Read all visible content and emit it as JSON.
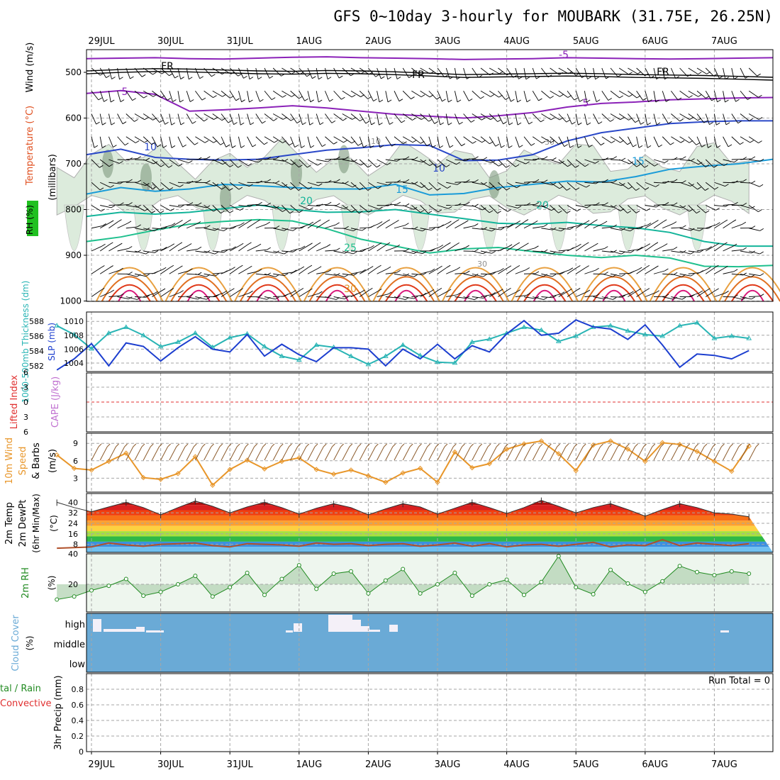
{
  "title": "GFS 0~10day 3-hourly for MOUBARK (31.75E, 26.25N)",
  "chart_data": {
    "type": "line",
    "title": "GFS 0~10day 3-hourly for MOUBARK (31.75E, 26.25N)",
    "date_labels": [
      "29JUL",
      "30JUL",
      "31JUL",
      "1AUG",
      "2AUG",
      "3AUG",
      "4AUG",
      "5AUG",
      "6AUG",
      "7AUG"
    ],
    "time_steps": 81,
    "colors": {
      "rh_fill": "#dcebdc",
      "rh_dark": "#7f9a7f",
      "cloud": "#6aaad6",
      "grid": "#a6a6a6",
      "freezing": "#000000"
    },
    "panels": {
      "upper_air": {
        "ylabel": "(millibars)",
        "legend": [
          "Wind (m/s)",
          "Temperature (°C)",
          "RH (%)"
        ],
        "y_ticks": [
          500,
          600,
          700,
          800,
          900,
          1000
        ],
        "temperature_labels": [
          "-5",
          "5",
          "10",
          "15",
          "20",
          "25",
          "30",
          "FR"
        ],
        "rh_labels": [
          "10",
          "30"
        ],
        "isotherms": [
          {
            "label": "-5",
            "color": "#8b22b8",
            "y": [
              470,
              469,
              468,
              470,
              471,
              469,
              467,
              466,
              468,
              469,
              470,
              472,
              471,
              470,
              468,
              469,
              470,
              471,
              470,
              469,
              468
            ]
          },
          {
            "label": "FR",
            "color": "#000000",
            "y": [
              500,
              497,
              495,
              496,
              498,
              500,
              501,
              499,
              500,
              502,
              505,
              508,
              507,
              506,
              505,
              506,
              508,
              509,
              510,
              512,
              514
            ]
          },
          {
            "label": "5",
            "color": "#8b22b8",
            "y": [
              546,
              540,
              548,
              585,
              582,
              578,
              573,
              578,
              585,
              592,
              596,
              600,
              595,
              588,
              576,
              568,
              565,
              560,
              558,
              556,
              555
            ]
          },
          {
            "label": "10",
            "color": "#2a48c8",
            "y": [
              680,
              668,
              686,
              690,
              692,
              690,
              680,
              670,
              665,
              658,
              660,
              693,
              692,
              680,
              650,
              632,
              622,
              612,
              608,
              606,
              606
            ]
          },
          {
            "label": "15",
            "color": "#199bd8",
            "y": [
              766,
              752,
              760,
              755,
              745,
              748,
              752,
              755,
              755,
              745,
              768,
              765,
              752,
              745,
              738,
              740,
              728,
              712,
              705,
              700,
              690
            ]
          },
          {
            "label": "20",
            "color": "#13b49a",
            "y": [
              815,
              806,
              810,
              806,
              798,
              790,
              800,
              806,
              805,
              800,
              810,
              820,
              830,
              832,
              828,
              835,
              840,
              850,
              870,
              880,
              880
            ]
          },
          {
            "label": "25",
            "color": "#1fc08e",
            "y": [
              870,
              860,
              845,
              832,
              826,
              822,
              825,
              842,
              865,
              880,
              895,
              886,
              883,
              892,
              900,
              905,
              900,
              906,
              924,
              925,
              922
            ]
          }
        ]
      },
      "thickness_slp": {
        "ylabel_left": "1000-500mb Thickness (dm)",
        "ylabel_right": "SLP (mb)",
        "thickness_ticks": [
          582,
          584,
          586,
          588
        ],
        "slp_ticks": [
          1004,
          1006,
          1008,
          1010
        ],
        "thickness": {
          "name": "1000-500mb Thickness",
          "color": "#28b4b4",
          "x": [
            0,
            2,
            4,
            6,
            8,
            10,
            12,
            14,
            16,
            18,
            20,
            22,
            24,
            26,
            28,
            30,
            32,
            34,
            36,
            38,
            40,
            42,
            44,
            46,
            48,
            50,
            52,
            54,
            56,
            58,
            60,
            62,
            64,
            66,
            68,
            70,
            72,
            74,
            76,
            78,
            80
          ],
          "values": [
            587.4,
            586.2,
            584.3,
            586.4,
            587.2,
            586.1,
            584.6,
            585.2,
            586.4,
            584.5,
            585.8,
            586.3,
            584.6,
            583.3,
            582.8,
            584.8,
            584.5,
            583.3,
            582.2,
            583.3,
            584.8,
            583.4,
            582.5,
            582.4,
            585.2,
            585.6,
            586.4,
            587.2,
            586.8,
            585.3,
            586.0,
            587.2,
            587.4,
            586.7,
            586.2,
            586.0,
            587.4,
            587.8,
            585.7,
            586.0,
            585.7
          ]
        },
        "slp": {
          "name": "SLP",
          "color": "#1c3ecf",
          "x": [
            0,
            2,
            4,
            6,
            8,
            10,
            12,
            14,
            16,
            18,
            20,
            22,
            24,
            26,
            28,
            30,
            32,
            34,
            36,
            38,
            40,
            42,
            44,
            46,
            48,
            50,
            52,
            54,
            56,
            58,
            60,
            62,
            64,
            66,
            68,
            70,
            72,
            74,
            76,
            78,
            80
          ],
          "values": [
            1003.0,
            1004.6,
            1006.8,
            1003.6,
            1006.9,
            1006.4,
            1004.3,
            1006.2,
            1007.8,
            1006.0,
            1005.6,
            1008.1,
            1005.0,
            1006.7,
            1005.2,
            1004.2,
            1006.2,
            1006.2,
            1006.0,
            1003.6,
            1006.0,
            1004.6,
            1006.7,
            1004.6,
            1006.5,
            1005.6,
            1008.2,
            1010.1,
            1008.0,
            1008.3,
            1010.2,
            1009.2,
            1008.9,
            1007.4,
            1009.5,
            1006.6,
            1003.4,
            1005.3,
            1005.1,
            1004.6,
            1005.8
          ]
        }
      },
      "cape_li": {
        "ylabel_left": "Lifted Index",
        "ylabel_right": "CAPE (J/kg)",
        "li_ticks": [
          -6,
          -3,
          0,
          3,
          6
        ],
        "lifted_index": {
          "name": "Lifted Index",
          "color": "#e03030",
          "value": 0
        }
      },
      "wind10m": {
        "ylabel": "10m Wind Speed & Barbs (m/s)",
        "y_ticks": [
          3,
          6,
          9
        ],
        "speed": {
          "name": "10m Wind Speed",
          "color": "#e8962a",
          "x": [
            0,
            2,
            4,
            6,
            8,
            10,
            12,
            14,
            16,
            18,
            20,
            22,
            24,
            26,
            28,
            30,
            32,
            34,
            36,
            38,
            40,
            42,
            44,
            46,
            48,
            50,
            52,
            54,
            56,
            58,
            60,
            62,
            64,
            66,
            68,
            70,
            72,
            74,
            76,
            78,
            80
          ],
          "values": [
            7.0,
            4.7,
            4.4,
            5.9,
            7.3,
            3.1,
            2.8,
            3.8,
            6.7,
            1.8,
            4.5,
            6.1,
            4.6,
            5.9,
            6.5,
            4.5,
            3.7,
            4.4,
            3.4,
            2.3,
            3.9,
            4.7,
            2.3,
            7.5,
            4.8,
            5.5,
            8.0,
            8.9,
            9.4,
            7.2,
            4.3,
            8.7,
            9.4,
            8.0,
            5.9,
            9.1,
            8.8,
            7.6,
            5.9,
            4.2,
            8.5
          ]
        }
      },
      "temperature2m": {
        "ylabel": "2m Temp 2m DewPt (6hr Min/Max) (°C)",
        "y_ticks": [
          8,
          16,
          24,
          32,
          40
        ],
        "temp": {
          "name": "2m Temp",
          "color": "#000000",
          "x": [
            0,
            2,
            4,
            6,
            8,
            10,
            12,
            14,
            16,
            18,
            20,
            22,
            24,
            26,
            28,
            30,
            32,
            34,
            36,
            38,
            40,
            42,
            44,
            46,
            48,
            50,
            52,
            54,
            56,
            58,
            60,
            62,
            64,
            66,
            68,
            70,
            72,
            74,
            76,
            78,
            80
          ],
          "values": [
            40.0,
            36.0,
            32.8,
            36.5,
            40.0,
            36.0,
            30.5,
            36.0,
            41.0,
            37.0,
            32.0,
            36.5,
            40.0,
            36.0,
            31.0,
            35.5,
            39.0,
            36.0,
            30.5,
            35.0,
            39.0,
            36.5,
            31.0,
            35.5,
            40.0,
            36.0,
            31.5,
            36.0,
            41.5,
            37.0,
            32.0,
            36.0,
            39.0,
            34.5,
            29.5,
            34.5,
            39.0,
            36.0,
            32.0,
            31.0,
            29.0
          ]
        },
        "dewpt": {
          "name": "2m DewPt",
          "color": "#b0502a",
          "x": [
            0,
            2,
            4,
            6,
            8,
            10,
            12,
            14,
            16,
            18,
            20,
            22,
            24,
            26,
            28,
            30,
            32,
            34,
            36,
            38,
            40,
            42,
            44,
            46,
            48,
            50,
            52,
            54,
            56,
            58,
            60,
            62,
            64,
            66,
            68,
            70,
            72,
            74,
            76,
            78,
            80
          ],
          "values": [
            5.0,
            5.5,
            6.0,
            9.0,
            7.5,
            6.5,
            8.0,
            8.5,
            9.0,
            7.0,
            6.0,
            8.5,
            8.0,
            7.5,
            6.5,
            9.0,
            8.0,
            8.5,
            7.0,
            8.0,
            8.5,
            6.5,
            7.5,
            9.0,
            6.5,
            8.5,
            6.0,
            7.5,
            8.0,
            6.5,
            8.0,
            9.5,
            6.0,
            7.5,
            7.0,
            11.5,
            7.0,
            9.0,
            8.0,
            7.0,
            8.5
          ]
        }
      },
      "rh2m": {
        "ylabel": "2m RH (%)",
        "y_ticks": [
          20,
          40
        ],
        "rh": {
          "name": "2m RH",
          "color": "#228b22",
          "x": [
            0,
            2,
            4,
            6,
            8,
            10,
            12,
            14,
            16,
            18,
            20,
            22,
            24,
            26,
            28,
            30,
            32,
            34,
            36,
            38,
            40,
            42,
            44,
            46,
            48,
            50,
            52,
            54,
            56,
            58,
            60,
            62,
            64,
            66,
            68,
            70,
            72,
            74,
            76,
            78,
            80
          ],
          "values": [
            10.0,
            12.0,
            16.0,
            19.0,
            23.5,
            12.5,
            15.0,
            20.0,
            25.5,
            12.0,
            18.0,
            27.5,
            13.0,
            23.5,
            32.5,
            17.0,
            27.0,
            28.5,
            14.0,
            22.5,
            30.0,
            14.0,
            20.0,
            27.5,
            12.5,
            20.0,
            23.0,
            13.0,
            21.5,
            38.5,
            18.0,
            13.5,
            29.5,
            20.5,
            15.0,
            22.0,
            32.0,
            28.0,
            26.0,
            28.5,
            27.0
          ]
        }
      },
      "cloud": {
        "ylabel": "Cloud Cover (%)",
        "levels": [
          "high",
          "middle",
          "low"
        ]
      },
      "precip": {
        "ylabel_left": "Total / Rain Convective",
        "ylabel_right": "3hr Precip (mm)",
        "y_ticks": [
          0,
          0.2,
          0.4,
          0.6,
          0.8
        ],
        "run_total": "Run Total = 0",
        "values": []
      }
    }
  }
}
